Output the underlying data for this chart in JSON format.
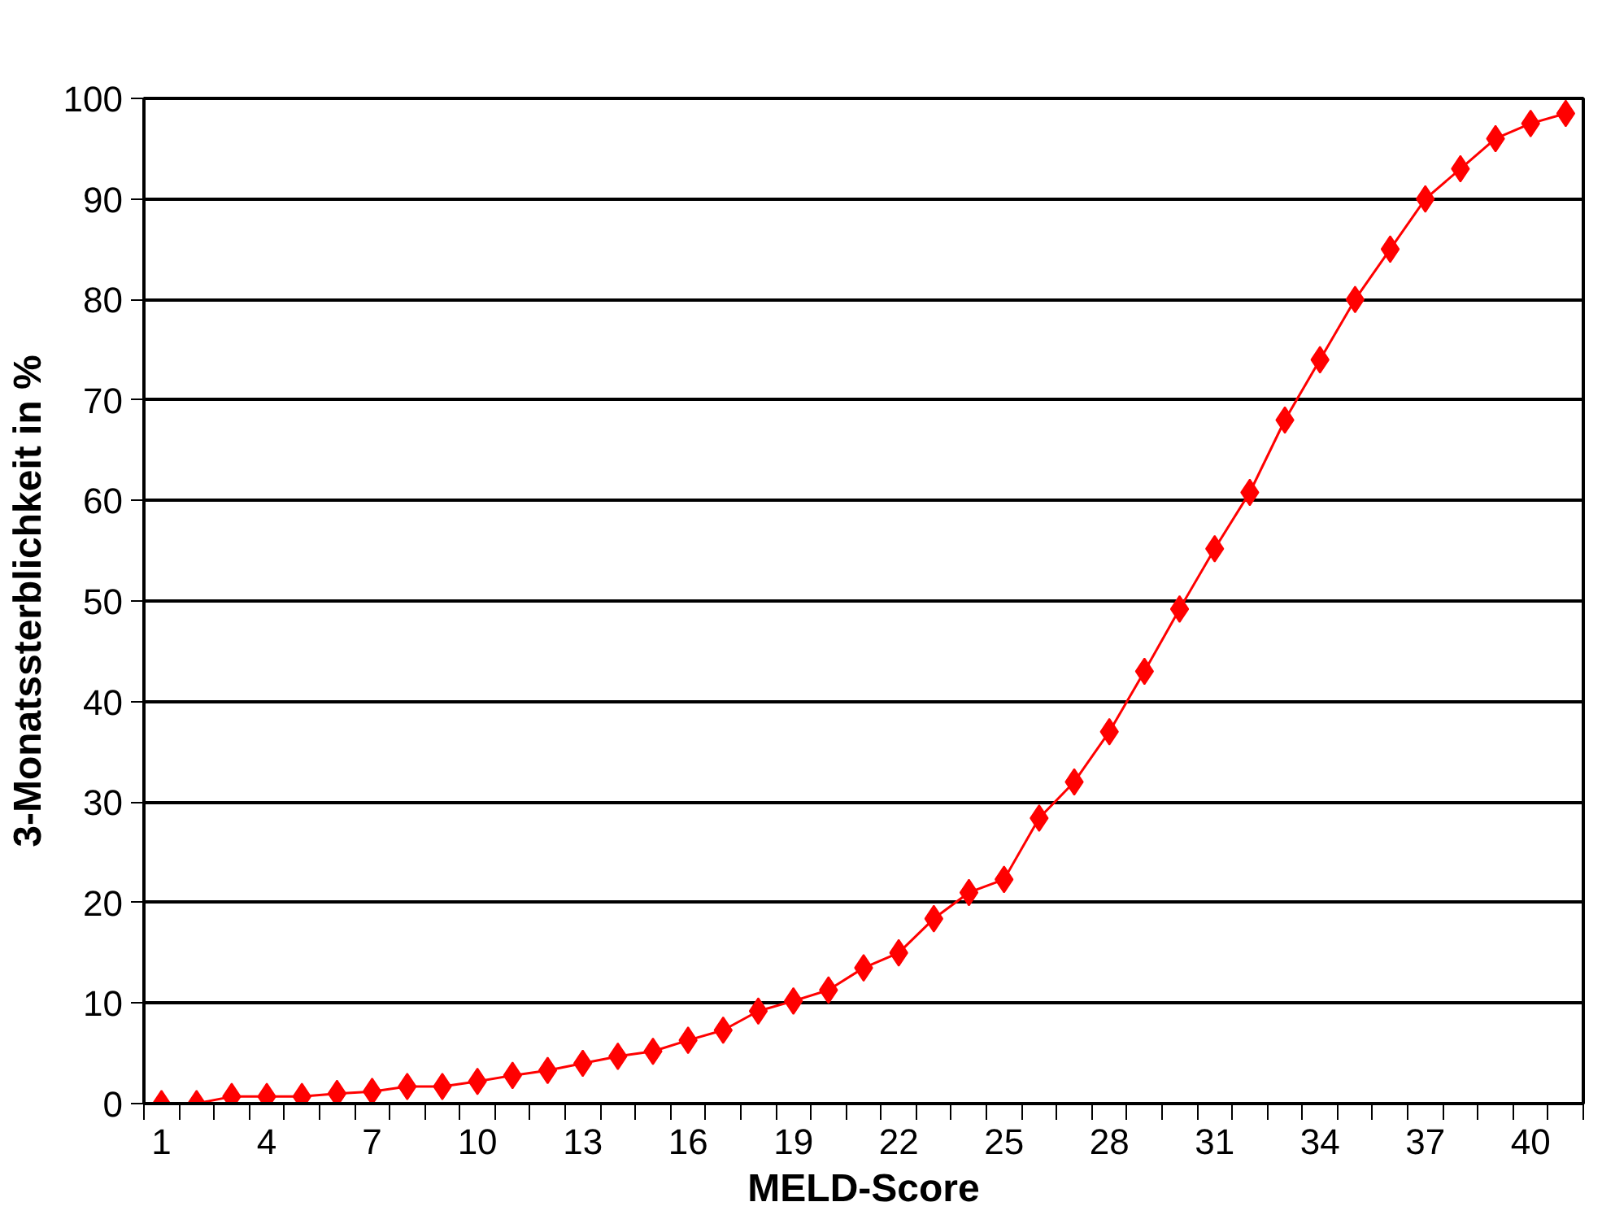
{
  "chart_data": {
    "type": "line",
    "xlabel": "MELD-Score",
    "ylabel": "3-Monatssterblichkeit in %",
    "categories": [
      "1",
      null,
      null,
      "4",
      null,
      null,
      "7",
      null,
      null,
      "10",
      null,
      null,
      "13",
      null,
      null,
      "16",
      null,
      null,
      "19",
      null,
      null,
      "22",
      null,
      null,
      "25",
      null,
      null,
      "28",
      null,
      null,
      "31",
      null,
      null,
      "34",
      null,
      null,
      "37",
      null,
      null,
      "40",
      null
    ],
    "series": [
      {
        "color": "#ff0000",
        "values": [
          0,
          0,
          0.7,
          0.7,
          0.7,
          1,
          1.2,
          1.7,
          1.7,
          2.2,
          2.8,
          3.3,
          4,
          4.7,
          5.2,
          6.3,
          7.3,
          9.2,
          10.2,
          11.3,
          13.5,
          15,
          18.4,
          21,
          22.3,
          28.4,
          32,
          37,
          43,
          49.2,
          55.2,
          60.8,
          68,
          74,
          80,
          85,
          90,
          93,
          96,
          97.5,
          98.5
        ]
      }
    ],
    "ylim": [
      0,
      100
    ],
    "yticks": [
      0,
      10,
      20,
      30,
      40,
      50,
      60,
      70,
      80,
      90,
      100
    ],
    "grid": "y",
    "marker": "diamond",
    "line_style": "solid"
  }
}
